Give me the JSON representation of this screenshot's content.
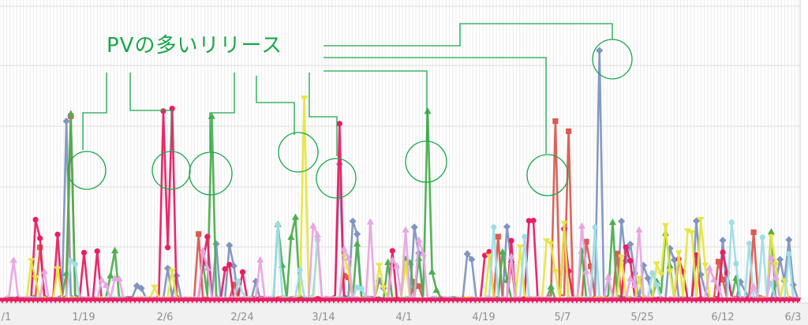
{
  "chart_data": {
    "type": "line",
    "title": "",
    "xlabel": "",
    "ylabel": "",
    "x_tick_labels": [
      "/1",
      "1/19",
      "2/6",
      "2/24",
      "3/14",
      "4/1",
      "4/19",
      "5/7",
      "5/25",
      "6/12",
      "6/3"
    ],
    "grid": true,
    "legend": "none",
    "annotation": {
      "text": "PVの多いリリース",
      "peak_dates": [
        "1/16",
        "2/6",
        "2/17",
        "3/9",
        "3/18",
        "4/6",
        "5/8",
        "5/16"
      ],
      "color": "#1aa64a"
    },
    "series": [
      {
        "color": "#7f95bf",
        "marker": "diamond",
        "peaks": [
          [
            "1/15",
            0.72
          ],
          [
            "3/18",
            0.55
          ],
          [
            "5/16",
            1.0
          ],
          [
            "6/28",
            0.25
          ]
        ]
      },
      {
        "color": "#db5b51",
        "marker": "square",
        "peaks": [
          [
            "1/9",
            0.22
          ],
          [
            "1/16",
            0.74
          ],
          [
            "5/6",
            0.72
          ],
          [
            "5/9",
            0.68
          ],
          [
            "6/20",
            0.28
          ]
        ]
      },
      {
        "color": "#4caf50",
        "marker": "triangle-up",
        "peaks": [
          [
            "1/16",
            0.75
          ],
          [
            "2/17",
            0.74
          ],
          [
            "3/8",
            0.34
          ],
          [
            "4/7",
            0.76
          ],
          [
            "5/19",
            0.32
          ]
        ]
      },
      {
        "color": "#e91e63",
        "marker": "circle",
        "peaks": [
          [
            "2/6",
            0.76
          ],
          [
            "2/8",
            0.77
          ],
          [
            "3/18",
            0.71
          ]
        ]
      },
      {
        "color": "#e6e640",
        "marker": "triangle-down",
        "peaks": [
          [
            "3/10",
            0.81
          ],
          [
            "4/28",
            0.22
          ],
          [
            "5/21",
            0.18
          ]
        ]
      },
      {
        "color": "#9fdde6",
        "marker": "circle",
        "peaks": [
          [
            "3/4",
            0.31
          ],
          [
            "3/13",
            0.25
          ],
          [
            "4/22",
            0.3
          ],
          [
            "6/22",
            0.26
          ]
        ]
      },
      {
        "color": "#e7a7e0",
        "marker": "triangle-up",
        "peaks": [
          [
            "1/3",
            0.17
          ],
          [
            "4/2",
            0.29
          ],
          [
            "5/25",
            0.29
          ]
        ]
      }
    ]
  }
}
